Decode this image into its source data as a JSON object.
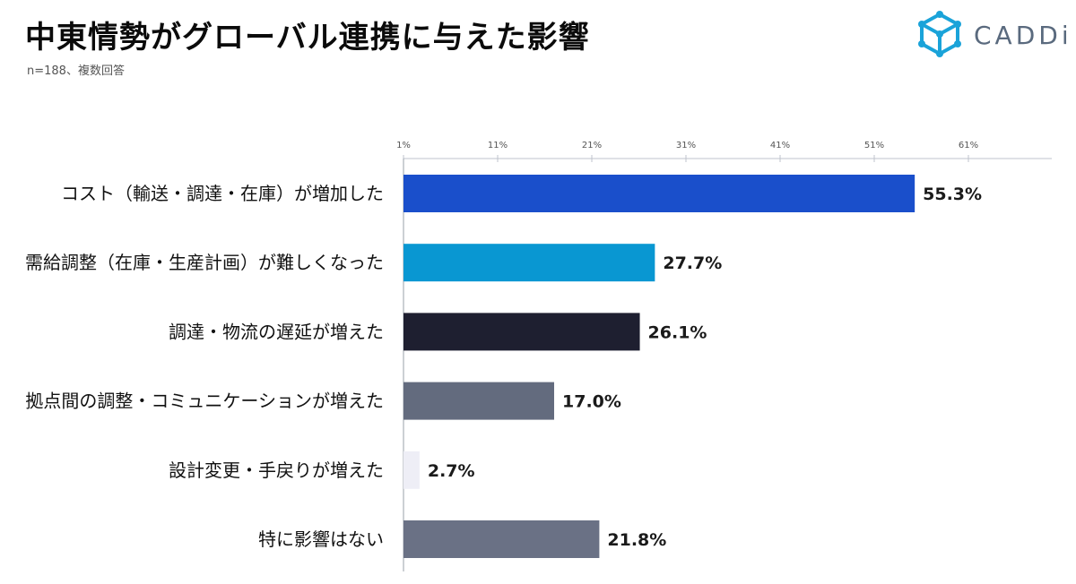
{
  "header": {
    "title": "中東情勢がグローバル連携に与えた影響",
    "subtitle": "n=188、複数回答"
  },
  "logo": {
    "text": "CADDi",
    "icon": "cube-icon",
    "color": "#1aa3d9"
  },
  "chart_data": {
    "type": "bar",
    "orientation": "horizontal",
    "title": "中東情勢がグローバル連携に与えた影響",
    "subtitle": "n=188、複数回答",
    "xlim": [
      1,
      71
    ],
    "x_ticks": [
      "1%",
      "11%",
      "21%",
      "31%",
      "41%",
      "51%",
      "61%"
    ],
    "x_tick_values": [
      1,
      11,
      21,
      31,
      41,
      51,
      61
    ],
    "categories": [
      "コスト（輸送・調達・在庫）が増加した",
      "需給調整（在庫・生産計画）が難しくなった",
      "調達・物流の遅延が増えた",
      "拠点間の調整・コミュニケーションが増えた",
      "設計変更・手戻りが増えた",
      "特に影響はない"
    ],
    "values": [
      55.3,
      27.7,
      26.1,
      17.0,
      2.7,
      21.8
    ],
    "value_labels": [
      "55.3%",
      "27.7%",
      "26.1%",
      "17.0%",
      "2.7%",
      "21.8%"
    ],
    "colors": [
      "#1a4fcb",
      "#0997d2",
      "#1e1f30",
      "#636b7e",
      "#eeeef6",
      "#6a7185"
    ],
    "grid": false
  }
}
